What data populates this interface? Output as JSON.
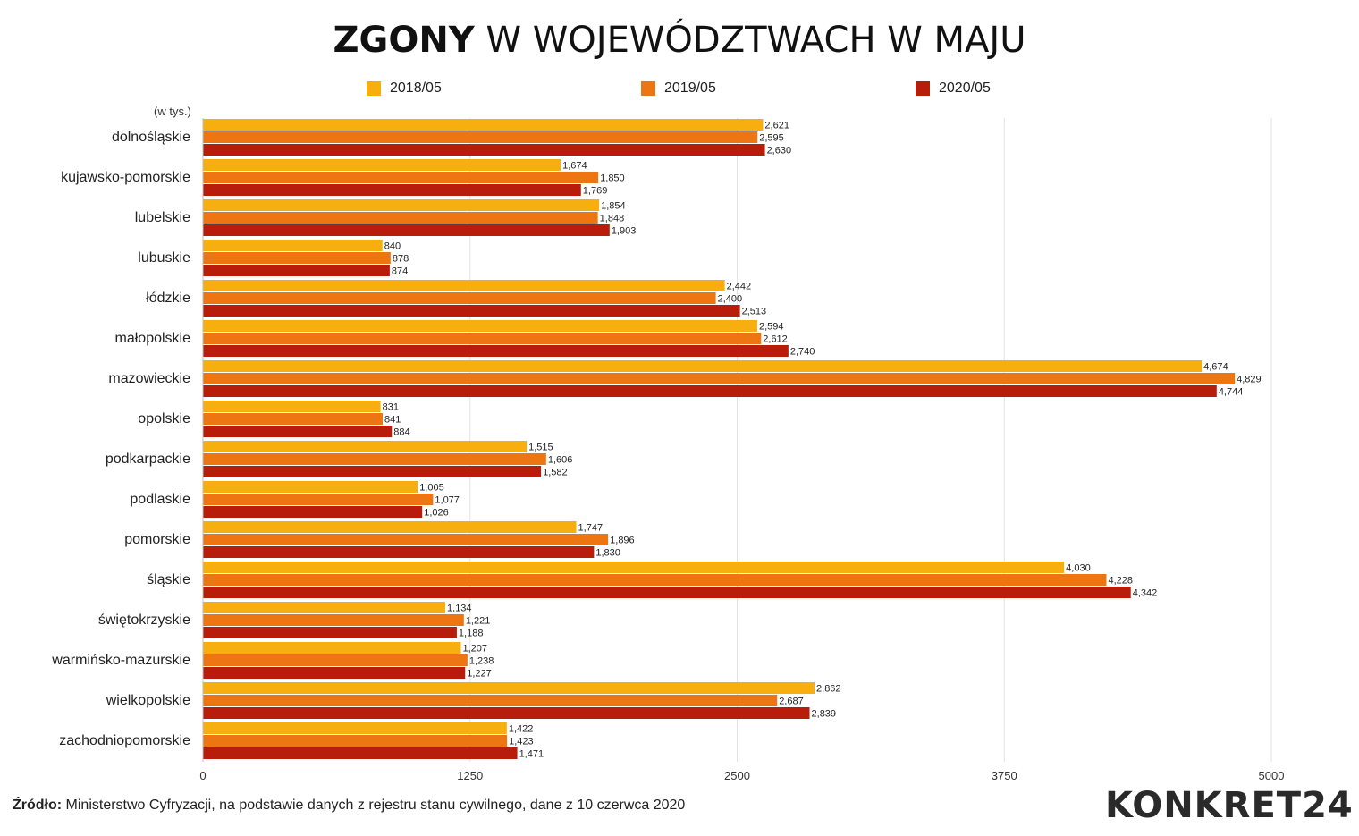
{
  "title_bold": "ZGONY",
  "title_rest": "W WOJEWÓDZTWACH W MAJU",
  "unit_label": "(w tys.)",
  "footer": {
    "source_label": "Źródło:",
    "source_text": " Ministerstwo Cyfryzacji, na podstawie danych z rejestru stanu cywilnego, dane z 10 czerwca 2020"
  },
  "logo_text": "KONKRET24",
  "colors": {
    "s2018": "#F7AE0F",
    "s2019": "#EE7612",
    "s2020": "#B81C0B"
  },
  "chart_data": {
    "type": "bar",
    "orientation": "horizontal",
    "title": "ZGONY W WOJEWÓDZTWACH W MAJU",
    "xlim": [
      0,
      5000
    ],
    "xticks": [
      0,
      1250,
      2500,
      3750,
      5000
    ],
    "grid": true,
    "legend_position": "top",
    "categories": [
      "dolnośląskie",
      "kujawsko-pomorskie",
      "lubelskie",
      "lubuskie",
      "łódzkie",
      "małopolskie",
      "mazowieckie",
      "opolskie",
      "podkarpackie",
      "podlaskie",
      "pomorskie",
      "śląskie",
      "świętokrzyskie",
      "warmińsko-mazurskie",
      "wielkopolskie",
      "zachodniopomorskie"
    ],
    "series": [
      {
        "name": "2018/05",
        "values": [
          2621,
          1674,
          1854,
          840,
          2442,
          2594,
          4674,
          831,
          1515,
          1005,
          1747,
          4030,
          1134,
          1207,
          2862,
          1422
        ]
      },
      {
        "name": "2019/05",
        "values": [
          2595,
          1850,
          1848,
          878,
          2400,
          2612,
          4829,
          841,
          1606,
          1077,
          1896,
          4228,
          1221,
          1238,
          2687,
          1423
        ]
      },
      {
        "name": "2020/05",
        "values": [
          2630,
          1769,
          1903,
          874,
          2513,
          2740,
          4744,
          884,
          1582,
          1026,
          1830,
          4342,
          1188,
          1227,
          2839,
          1471
        ]
      }
    ]
  }
}
